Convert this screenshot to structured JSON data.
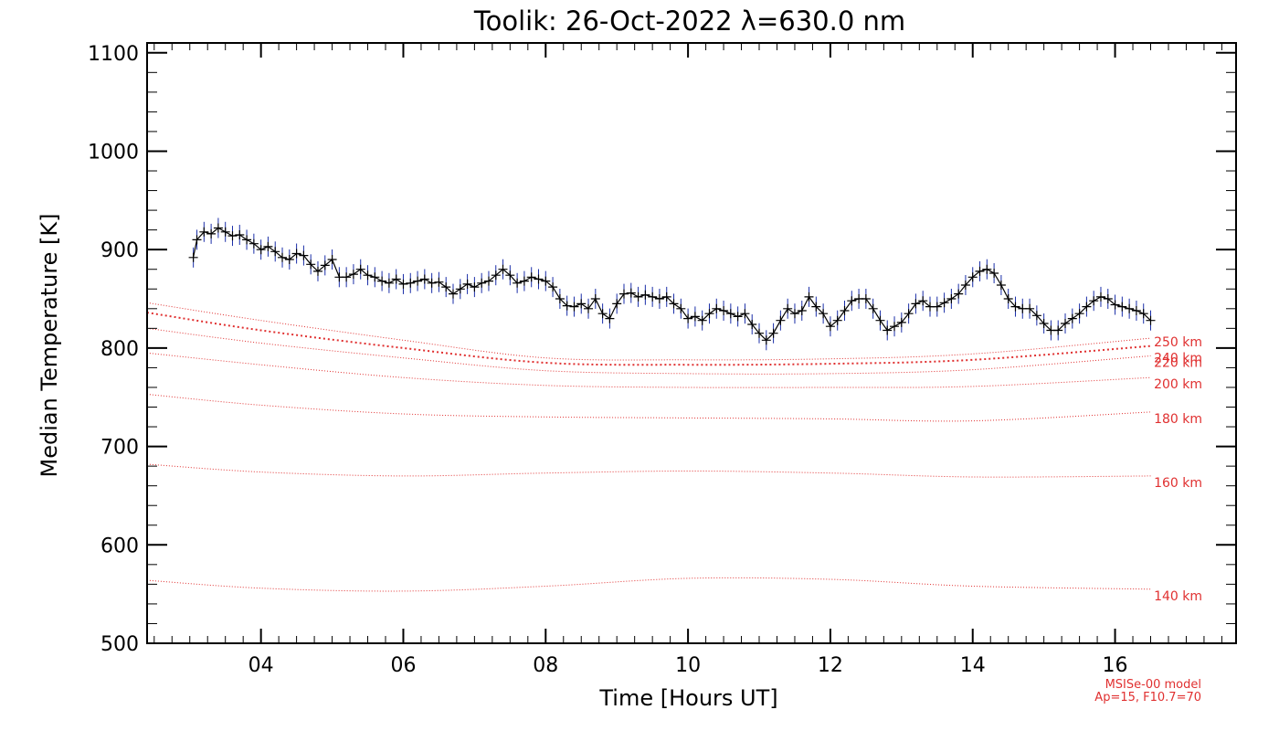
{
  "colors": {
    "data_line": "#000000",
    "error_bars": "#1a2ea8",
    "model_lines": "#e03030",
    "axes": "#000000"
  },
  "model_note": {
    "line1": "MSISe-00 model",
    "line2": "Ap=15, F10.7=70"
  },
  "chart_data": {
    "type": "line",
    "title": "Toolik: 26-Oct-2022 λ=630.0 nm",
    "xlabel": "Time [Hours UT]",
    "ylabel": "Median Temperature [K]",
    "xlim": [
      2.4,
      17.7
    ],
    "ylim": [
      500,
      1110
    ],
    "xticks": [
      4,
      6,
      8,
      10,
      12,
      14,
      16
    ],
    "xtick_labels": [
      "04",
      "06",
      "08",
      "10",
      "12",
      "14",
      "16"
    ],
    "yticks": [
      500,
      600,
      700,
      800,
      900,
      1000,
      1100
    ],
    "ytick_labels": [
      "500",
      "600",
      "700",
      "800",
      "900",
      "1000",
      "1100"
    ],
    "grid": false,
    "series": [
      {
        "style": "line+cross markers with error bars",
        "x": [
          3.05,
          3.1,
          3.2,
          3.3,
          3.4,
          3.5,
          3.6,
          3.7,
          3.8,
          3.9,
          4.0,
          4.1,
          4.2,
          4.3,
          4.4,
          4.5,
          4.6,
          4.7,
          4.8,
          4.9,
          5.0,
          5.1,
          5.2,
          5.3,
          5.4,
          5.5,
          5.6,
          5.7,
          5.8,
          5.9,
          6.0,
          6.1,
          6.2,
          6.3,
          6.4,
          6.5,
          6.6,
          6.7,
          6.8,
          6.9,
          7.0,
          7.1,
          7.2,
          7.3,
          7.4,
          7.5,
          7.6,
          7.7,
          7.8,
          7.9,
          8.0,
          8.1,
          8.2,
          8.3,
          8.4,
          8.5,
          8.6,
          8.7,
          8.8,
          8.9,
          9.0,
          9.1,
          9.2,
          9.3,
          9.4,
          9.5,
          9.6,
          9.7,
          9.8,
          9.9,
          10.0,
          10.1,
          10.2,
          10.3,
          10.4,
          10.5,
          10.6,
          10.7,
          10.8,
          10.9,
          11.0,
          11.1,
          11.2,
          11.3,
          11.4,
          11.5,
          11.6,
          11.7,
          11.8,
          11.9,
          12.0,
          12.1,
          12.2,
          12.3,
          12.4,
          12.5,
          12.6,
          12.7,
          12.8,
          12.9,
          13.0,
          13.1,
          13.2,
          13.3,
          13.4,
          13.5,
          13.6,
          13.7,
          13.8,
          13.9,
          14.0,
          14.1,
          14.2,
          14.3,
          14.4,
          14.5,
          14.6,
          14.7,
          14.8,
          14.9,
          15.0,
          15.1,
          15.2,
          15.3,
          15.4,
          15.5,
          15.6,
          15.7,
          15.8,
          15.9,
          16.0,
          16.1,
          16.2,
          16.3,
          16.4,
          16.5
        ],
        "y": [
          892,
          910,
          918,
          916,
          922,
          918,
          914,
          915,
          910,
          906,
          900,
          903,
          898,
          892,
          890,
          896,
          894,
          885,
          878,
          884,
          890,
          872,
          872,
          875,
          880,
          874,
          872,
          868,
          866,
          870,
          865,
          866,
          868,
          870,
          866,
          867,
          862,
          855,
          860,
          865,
          862,
          866,
          868,
          874,
          880,
          874,
          866,
          868,
          872,
          870,
          868,
          862,
          850,
          843,
          842,
          845,
          840,
          850,
          835,
          830,
          845,
          855,
          856,
          852,
          854,
          852,
          850,
          852,
          845,
          840,
          830,
          832,
          828,
          835,
          840,
          838,
          835,
          832,
          835,
          824,
          815,
          808,
          815,
          828,
          840,
          835,
          838,
          852,
          842,
          835,
          822,
          828,
          838,
          848,
          850,
          850,
          840,
          828,
          818,
          822,
          826,
          835,
          845,
          848,
          842,
          842,
          846,
          850,
          855,
          864,
          872,
          878,
          880,
          876,
          864,
          850,
          842,
          840,
          840,
          833,
          825,
          818,
          818,
          825,
          830,
          835,
          842,
          848,
          852,
          850,
          844,
          842,
          840,
          838,
          835,
          828
        ]
      }
    ],
    "model_curves": [
      {
        "label": "140 km",
        "x": [
          2.4,
          4,
          6,
          8,
          10,
          12,
          14,
          16.5
        ],
        "y": [
          564,
          556,
          553,
          558,
          566,
          565,
          558,
          555
        ]
      },
      {
        "label": "160 km",
        "x": [
          2.4,
          4,
          6,
          8,
          10,
          12,
          14,
          16.5
        ],
        "y": [
          682,
          674,
          670,
          673,
          675,
          673,
          669,
          670
        ]
      },
      {
        "label": "180 km",
        "x": [
          2.4,
          4,
          6,
          8,
          10,
          12,
          14,
          16.5
        ],
        "y": [
          753,
          742,
          733,
          730,
          729,
          728,
          726,
          735
        ]
      },
      {
        "label": "200 km",
        "x": [
          2.4,
          4,
          6,
          8,
          10,
          12,
          14,
          16.5
        ],
        "y": [
          795,
          783,
          770,
          762,
          760,
          760,
          761,
          770
        ]
      },
      {
        "label": "220 km",
        "x": [
          2.4,
          4,
          6,
          8,
          10,
          12,
          14,
          16.5
        ],
        "y": [
          820,
          805,
          790,
          777,
          774,
          774,
          778,
          792
        ]
      },
      {
        "label": "240 km",
        "x": [
          2.4,
          4,
          6,
          8,
          10,
          12,
          14,
          16.5
        ],
        "y": [
          836,
          818,
          800,
          785,
          783,
          784,
          788,
          802
        ]
      },
      {
        "label": "250 km",
        "x": [
          2.4,
          4,
          6,
          8,
          10,
          12,
          14,
          16.5
        ],
        "y": [
          846,
          828,
          808,
          790,
          788,
          789,
          794,
          810
        ]
      }
    ]
  }
}
